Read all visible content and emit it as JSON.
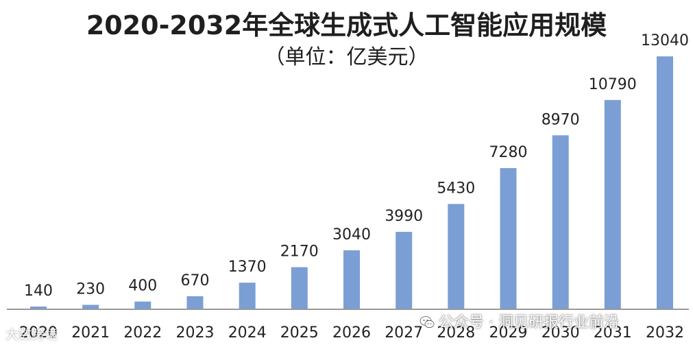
{
  "chart_data": {
    "type": "bar",
    "title": "2020-2032年全球生成式人工智能应用规模",
    "subtitle": "（单位：亿美元）",
    "categories": [
      "2020",
      "2021",
      "2022",
      "2023",
      "2024",
      "2025",
      "2026",
      "2027",
      "2028",
      "2029",
      "2030",
      "2031",
      "2032"
    ],
    "values": [
      140,
      230,
      400,
      670,
      1370,
      2170,
      3040,
      3990,
      5430,
      7280,
      8970,
      10790,
      13040
    ],
    "ylim": [
      0,
      14000
    ],
    "grid": false,
    "legend": "none",
    "bar_color": "#7b9fd4",
    "axis_color": "#9a9a9a"
  },
  "watermarks": {
    "right": "公众号 · 洞见研报行业前沿",
    "left": "大数跨境",
    "right_icon": "wechat-icon"
  }
}
